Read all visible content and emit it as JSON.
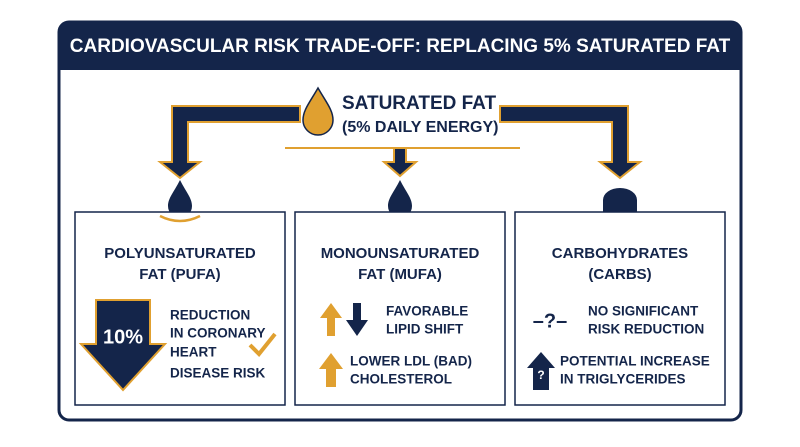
{
  "header": {
    "title": "CARDIOVASCULAR RISK TRADE-OFF: REPLACING 5% SATURATED FAT"
  },
  "source": {
    "lines": [
      "SATURATED FAT",
      "(5% DAILY ENERGY)"
    ]
  },
  "boxes": [
    {
      "heading": [
        "POLYUNSATURATED",
        "FAT (PUFA)"
      ],
      "items": [
        {
          "icon": "10%",
          "text": [
            "REDUCTION",
            "IN CORONARY",
            "HEART",
            "DISEASE RISK"
          ]
        }
      ]
    },
    {
      "heading": [
        "MONOUNSATURATED",
        "FAT (MUFA)"
      ],
      "items": [
        {
          "text": [
            "FAVORABLE",
            "LIPID SHIFT"
          ]
        },
        {
          "text": [
            "LOWER LDL (BAD)",
            "CHOLESTEROL"
          ]
        }
      ]
    },
    {
      "heading": [
        "CARBOHYDRATES",
        "(CARBS)"
      ],
      "items": [
        {
          "icon": "–?–",
          "text": [
            "NO SIGNIFICANT",
            "RISK REDUCTION"
          ]
        },
        {
          "icon": "?",
          "text": [
            "POTENTIAL INCREASE",
            "IN TRIGLYCERIDES"
          ]
        }
      ]
    }
  ]
}
